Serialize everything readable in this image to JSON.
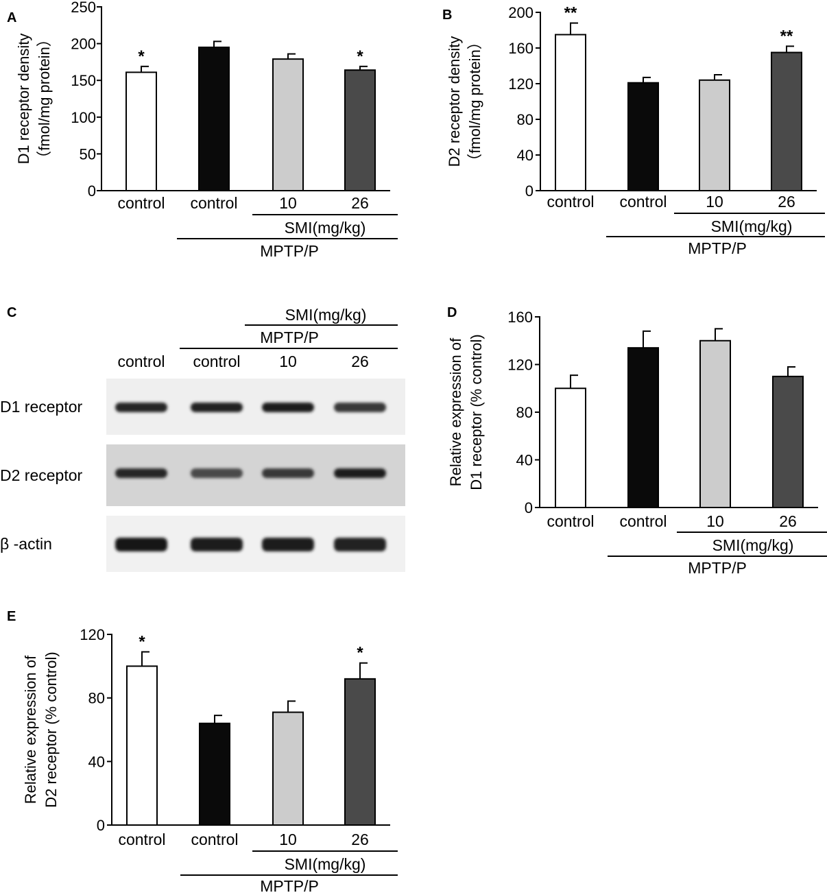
{
  "colors": {
    "sham_control": "#ffffff",
    "mptp_control": "#0a0a0a",
    "smi_10": "#cccccc",
    "smi_26": "#4a4a4a",
    "bar_stroke": "#000000"
  },
  "group_labels": {
    "smi": "SMI(mg/kg)",
    "mptp": "MPTP/P"
  },
  "chart_data": [
    {
      "panel": "A",
      "type": "bar",
      "categories": [
        "control",
        "control",
        "10",
        "26"
      ],
      "values": [
        161,
        195,
        179,
        164
      ],
      "errors": [
        8,
        8,
        7,
        5
      ],
      "significance": [
        "*",
        "",
        "",
        "*"
      ],
      "ylabel_lines": [
        "D1 receptor density",
        "（fmol/mg protein）"
      ],
      "ylim": [
        0,
        250
      ],
      "yticks": [
        0,
        50,
        100,
        150,
        200,
        250
      ],
      "tick_labels": [
        "0",
        "50",
        "100",
        "150",
        "200",
        "250"
      ]
    },
    {
      "panel": "B",
      "type": "bar",
      "categories": [
        "control",
        "control",
        "10",
        "26"
      ],
      "values": [
        175,
        121,
        124,
        155
      ],
      "errors": [
        13,
        6,
        6,
        7
      ],
      "significance": [
        "**",
        "",
        "",
        "**"
      ],
      "ylabel_lines": [
        "D2 receptor density",
        "（fmol/mg protein）"
      ],
      "ylim": [
        0,
        200
      ],
      "yticks": [
        0,
        40,
        80,
        120,
        160,
        200
      ],
      "tick_labels": [
        "0",
        "40",
        "80",
        "120",
        "160",
        "200"
      ]
    },
    {
      "panel": "D",
      "type": "bar",
      "categories": [
        "control",
        "control",
        "10",
        "26"
      ],
      "values": [
        100,
        134,
        140,
        110
      ],
      "errors": [
        11,
        14,
        10,
        8
      ],
      "significance": [
        "",
        "",
        "",
        ""
      ],
      "ylabel_lines": [
        "Relative expression of",
        "D1 receptor (% control)"
      ],
      "ylim": [
        0,
        160
      ],
      "yticks": [
        0,
        40,
        80,
        120,
        160
      ],
      "tick_labels": [
        "0",
        "40",
        "80",
        "120",
        "160"
      ]
    },
    {
      "panel": "E",
      "type": "bar",
      "categories": [
        "control",
        "control",
        "10",
        "26"
      ],
      "values": [
        100,
        64,
        71,
        92
      ],
      "errors": [
        9,
        5,
        7,
        10
      ],
      "significance": [
        "*",
        "",
        "",
        "*"
      ],
      "ylabel_lines": [
        "Relative expression of",
        "D2 receptor (% control)"
      ],
      "ylim": [
        0,
        120
      ],
      "yticks": [
        0,
        40,
        80,
        120
      ],
      "tick_labels": [
        "0",
        "40",
        "80",
        "120"
      ]
    }
  ],
  "blot": {
    "panel": "C",
    "lanes": [
      "control",
      "control",
      "10",
      "26"
    ],
    "rows": [
      {
        "label": "D1 receptor",
        "intensities": [
          0.85,
          0.9,
          0.92,
          0.7
        ]
      },
      {
        "label": "D2 receptor",
        "intensities": [
          0.85,
          0.55,
          0.7,
          0.92
        ]
      },
      {
        "label": "β -actin",
        "intensities": [
          1.0,
          0.95,
          0.92,
          0.9
        ]
      }
    ]
  }
}
